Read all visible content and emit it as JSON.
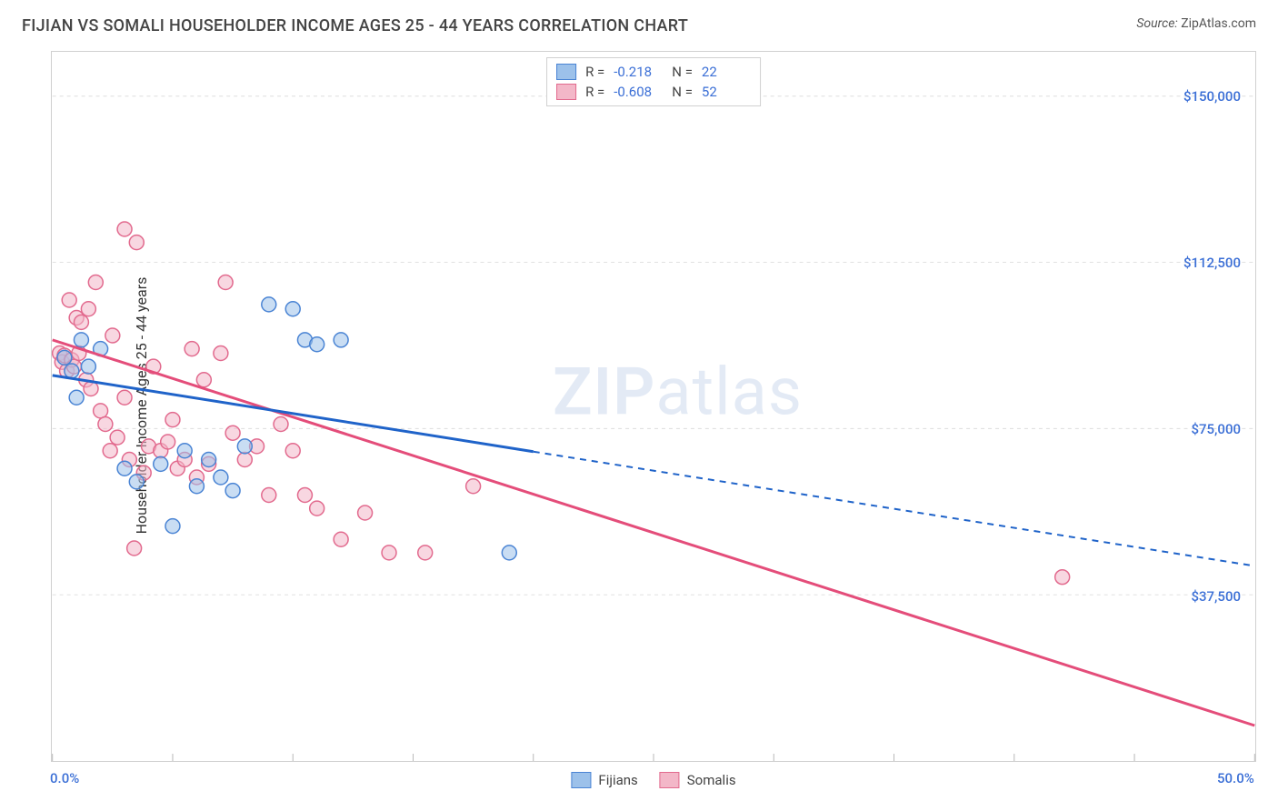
{
  "header": {
    "title": "FIJIAN VS SOMALI HOUSEHOLDER INCOME AGES 25 - 44 YEARS CORRELATION CHART",
    "source_label": "Source: ",
    "source_value": "ZipAtlas.com"
  },
  "chart": {
    "type": "scatter",
    "ylabel": "Householder Income Ages 25 - 44 years",
    "background_color": "#ffffff",
    "border_color": "#d0d0d0",
    "grid_color": "#dddddd",
    "grid_dash": "4 4",
    "text_color": "#444444",
    "tick_label_color": "#3b6fd6",
    "xlim": [
      0,
      50
    ],
    "ylim": [
      0,
      160000
    ],
    "x_tick_positions": [
      0,
      5,
      10,
      15,
      20,
      25,
      30,
      35,
      40,
      45,
      50
    ],
    "x_tick_labels": {
      "0": "0.0%",
      "50": "50.0%"
    },
    "y_gridlines": [
      37500,
      75000,
      112500,
      150000
    ],
    "y_tick_labels": {
      "37500": "$37,500",
      "75000": "$75,000",
      "112500": "$112,500",
      "150000": "$150,000"
    },
    "marker_radius": 8,
    "marker_stroke_width": 1.5,
    "marker_opacity": 0.55,
    "line_width": 3,
    "series": {
      "fijians": {
        "label": "Fijians",
        "fill": "#9cc1ea",
        "stroke": "#4a84d4",
        "line_color": "#1f63c9",
        "r": -0.218,
        "n": 22,
        "points": [
          [
            0.5,
            91000
          ],
          [
            0.8,
            88000
          ],
          [
            1.0,
            82000
          ],
          [
            1.2,
            95000
          ],
          [
            1.5,
            89000
          ],
          [
            2.0,
            93000
          ],
          [
            3.0,
            66000
          ],
          [
            3.5,
            63000
          ],
          [
            4.5,
            67000
          ],
          [
            5.0,
            53000
          ],
          [
            5.5,
            70000
          ],
          [
            6.0,
            62000
          ],
          [
            6.5,
            68000
          ],
          [
            7.0,
            64000
          ],
          [
            7.5,
            61000
          ],
          [
            8.0,
            71000
          ],
          [
            9.0,
            103000
          ],
          [
            10.0,
            102000
          ],
          [
            10.5,
            95000
          ],
          [
            11.0,
            94000
          ],
          [
            12.0,
            95000
          ],
          [
            19.0,
            47000
          ]
        ],
        "trend": {
          "start": [
            0,
            87000
          ],
          "end": [
            50,
            44000
          ],
          "solid_until_x": 20
        }
      },
      "somalis": {
        "label": "Somalis",
        "fill": "#f3b7c8",
        "stroke": "#e26a8e",
        "line_color": "#e44d7a",
        "r": -0.608,
        "n": 52,
        "points": [
          [
            0.3,
            92000
          ],
          [
            0.4,
            90000
          ],
          [
            0.5,
            91500
          ],
          [
            0.6,
            88000
          ],
          [
            0.7,
            104000
          ],
          [
            0.8,
            90500
          ],
          [
            0.9,
            89000
          ],
          [
            1.0,
            100000
          ],
          [
            1.1,
            92000
          ],
          [
            1.2,
            99000
          ],
          [
            1.4,
            86000
          ],
          [
            1.5,
            102000
          ],
          [
            1.6,
            84000
          ],
          [
            1.8,
            108000
          ],
          [
            2.0,
            79000
          ],
          [
            2.2,
            76000
          ],
          [
            2.4,
            70000
          ],
          [
            2.5,
            96000
          ],
          [
            2.7,
            73000
          ],
          [
            3.0,
            82000
          ],
          [
            3.0,
            120000
          ],
          [
            3.2,
            68000
          ],
          [
            3.4,
            48000
          ],
          [
            3.5,
            117000
          ],
          [
            3.8,
            65000
          ],
          [
            4.0,
            71000
          ],
          [
            4.2,
            89000
          ],
          [
            4.5,
            70000
          ],
          [
            4.8,
            72000
          ],
          [
            5.0,
            77000
          ],
          [
            5.2,
            66000
          ],
          [
            5.5,
            68000
          ],
          [
            5.8,
            93000
          ],
          [
            6.0,
            64000
          ],
          [
            6.3,
            86000
          ],
          [
            6.5,
            67000
          ],
          [
            7.0,
            92000
          ],
          [
            7.2,
            108000
          ],
          [
            7.5,
            74000
          ],
          [
            8.0,
            68000
          ],
          [
            8.5,
            71000
          ],
          [
            9.0,
            60000
          ],
          [
            9.5,
            76000
          ],
          [
            10.0,
            70000
          ],
          [
            10.5,
            60000
          ],
          [
            11.0,
            57000
          ],
          [
            12.0,
            50000
          ],
          [
            13.0,
            56000
          ],
          [
            14.0,
            47000
          ],
          [
            15.5,
            47000
          ],
          [
            17.5,
            62000
          ],
          [
            42.0,
            41500
          ]
        ],
        "trend": {
          "start": [
            0,
            95000
          ],
          "end": [
            50,
            8000
          ],
          "solid_until_x": 50
        }
      }
    },
    "stats_legend": {
      "r_label": "R =",
      "n_label": "N ="
    },
    "bottom_legend": {
      "fijians": "Fijians",
      "somalis": "Somalis"
    },
    "watermark": {
      "zip": "ZIP",
      "atlas": "atlas",
      "color": "rgba(100,140,200,0.18)",
      "fontsize": 72
    }
  }
}
